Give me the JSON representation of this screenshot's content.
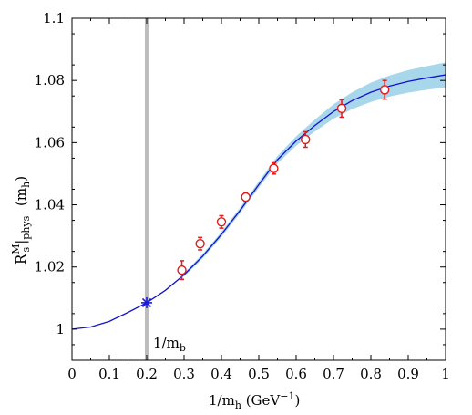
{
  "chart_data": {
    "type": "line",
    "xlabel_parts": {
      "var": "1/m",
      "sub": "h",
      "unit_open": " (GeV",
      "unit_sup": "−1",
      "unit_close": ")"
    },
    "ylabel_parts": {
      "R": "R",
      "sup": "M",
      "sub": "s",
      "bar": "|",
      "phys": "phys",
      "arg": " (m",
      "argsub": "h",
      "close": ")"
    },
    "xlim": [
      0,
      1.0
    ],
    "ylim": [
      0.99,
      1.1
    ],
    "xticks": [
      "0",
      "0.1",
      "0.2",
      "0.3",
      "0.4",
      "0.5",
      "0.6",
      "0.7",
      "0.8",
      "0.9",
      "1"
    ],
    "xtick_values": [
      0,
      0.1,
      0.2,
      0.3,
      0.4,
      0.5,
      0.6,
      0.7,
      0.8,
      0.9,
      1.0
    ],
    "yticks": [
      "1",
      "1.02",
      "1.04",
      "1.06",
      "1.08",
      "1.1"
    ],
    "ytick_values": [
      1.0,
      1.02,
      1.04,
      1.06,
      1.08,
      1.1
    ],
    "colors": {
      "fit": "#1414cc",
      "band": "#a8d6ea",
      "points": "#e01b1b",
      "marker": "#1a1ae0",
      "vline": "#bdbdbd"
    },
    "points": [
      {
        "x": 0.294,
        "y": 1.019,
        "err": 0.003
      },
      {
        "x": 0.343,
        "y": 1.0275,
        "err": 0.002
      },
      {
        "x": 0.4,
        "y": 1.0345,
        "err": 0.002
      },
      {
        "x": 0.465,
        "y": 1.0425,
        "err": 0.0015
      },
      {
        "x": 0.54,
        "y": 1.0517,
        "err": 0.0018
      },
      {
        "x": 0.625,
        "y": 1.061,
        "err": 0.0025
      },
      {
        "x": 0.722,
        "y": 1.071,
        "err": 0.0028
      },
      {
        "x": 0.837,
        "y": 1.077,
        "err": 0.003
      }
    ],
    "fit_curve": {
      "x": [
        0,
        0.05,
        0.1,
        0.15,
        0.2,
        0.25,
        0.3,
        0.35,
        0.4,
        0.45,
        0.5,
        0.55,
        0.6,
        0.65,
        0.7,
        0.75,
        0.8,
        0.85,
        0.9,
        0.95,
        1.0
      ],
      "y": [
        1.0,
        1.0007,
        1.0025,
        1.0054,
        1.0085,
        1.0125,
        1.0175,
        1.0235,
        1.0305,
        1.0382,
        1.0465,
        1.0545,
        1.0605,
        1.0655,
        1.07,
        1.0735,
        1.0762,
        1.0782,
        1.0797,
        1.0808,
        1.0818
      ]
    },
    "band": {
      "x": [
        0.3,
        0.35,
        0.4,
        0.45,
        0.5,
        0.55,
        0.6,
        0.65,
        0.7,
        0.75,
        0.8,
        0.85,
        0.9,
        0.95,
        1.0
      ],
      "half_width": [
        0.0006,
        0.0007,
        0.0008,
        0.0009,
        0.001,
        0.0012,
        0.0015,
        0.0019,
        0.0023,
        0.0027,
        0.0031,
        0.0034,
        0.0036,
        0.0038,
        0.004
      ]
    },
    "vline_x": 0.2,
    "physical_point": {
      "x": 0.2,
      "y": 1.0085
    },
    "annotation": {
      "var": "1/m",
      "sub": "b"
    }
  }
}
